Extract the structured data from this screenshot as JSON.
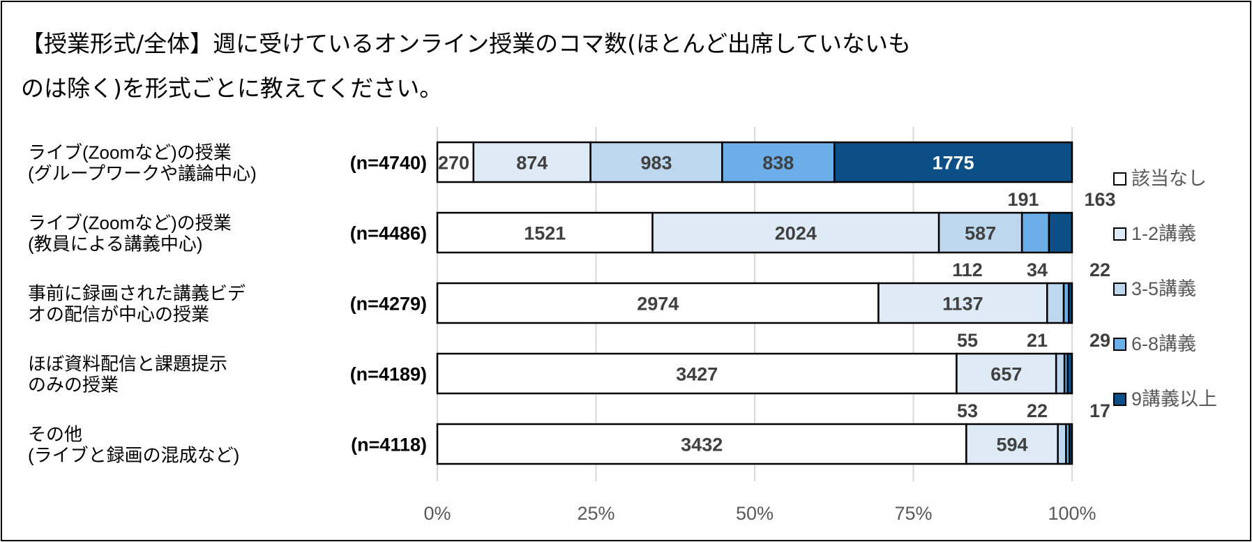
{
  "chart_data": {
    "type": "bar",
    "orientation": "horizontal",
    "stacked": "percent",
    "title_lines": [
      "【授業形式/全体】週に受けているオンライン授業のコマ数(ほとんど出席していないも",
      "のは除く)を形式ごとに教えてください。"
    ],
    "categories": [
      {
        "lines": [
          "ライブ(Zoomなど)の授業",
          "(グループワークや議論中心)"
        ],
        "n": "(n=4740)"
      },
      {
        "lines": [
          "ライブ(Zoomなど)の授業",
          "(教員による講義中心)"
        ],
        "n": "(n=4486)"
      },
      {
        "lines": [
          "事前に録画された講義ビデ",
          "オの配信が中心の授業"
        ],
        "n": "(n=4279)"
      },
      {
        "lines": [
          "ほぼ資料配信と課題提示",
          "のみの授業"
        ],
        "n": "(n=4189)"
      },
      {
        "lines": [
          "その他",
          "(ライブと録画の混成など)"
        ],
        "n": "(n=4118)"
      }
    ],
    "series": [
      {
        "name": "該当なし",
        "color": "#ffffff",
        "values": [
          270,
          1521,
          2974,
          3427,
          3432
        ]
      },
      {
        "name": "1-2講義",
        "color": "#deebf7",
        "values": [
          874,
          2024,
          1137,
          657,
          594
        ]
      },
      {
        "name": "3-5講義",
        "color": "#bdd7ee",
        "values": [
          983,
          587,
          112,
          55,
          53
        ]
      },
      {
        "name": "6-8講義",
        "color": "#6baee8",
        "values": [
          838,
          191,
          34,
          21,
          22
        ]
      },
      {
        "name": "9講義以上",
        "color": "#0b4f86",
        "values": [
          1775,
          163,
          22,
          29,
          17
        ]
      }
    ],
    "xaxis": {
      "ticks": [
        "0%",
        "25%",
        "50%",
        "75%",
        "100%"
      ],
      "range": [
        0,
        100
      ]
    },
    "grid": true,
    "legend": "right"
  }
}
